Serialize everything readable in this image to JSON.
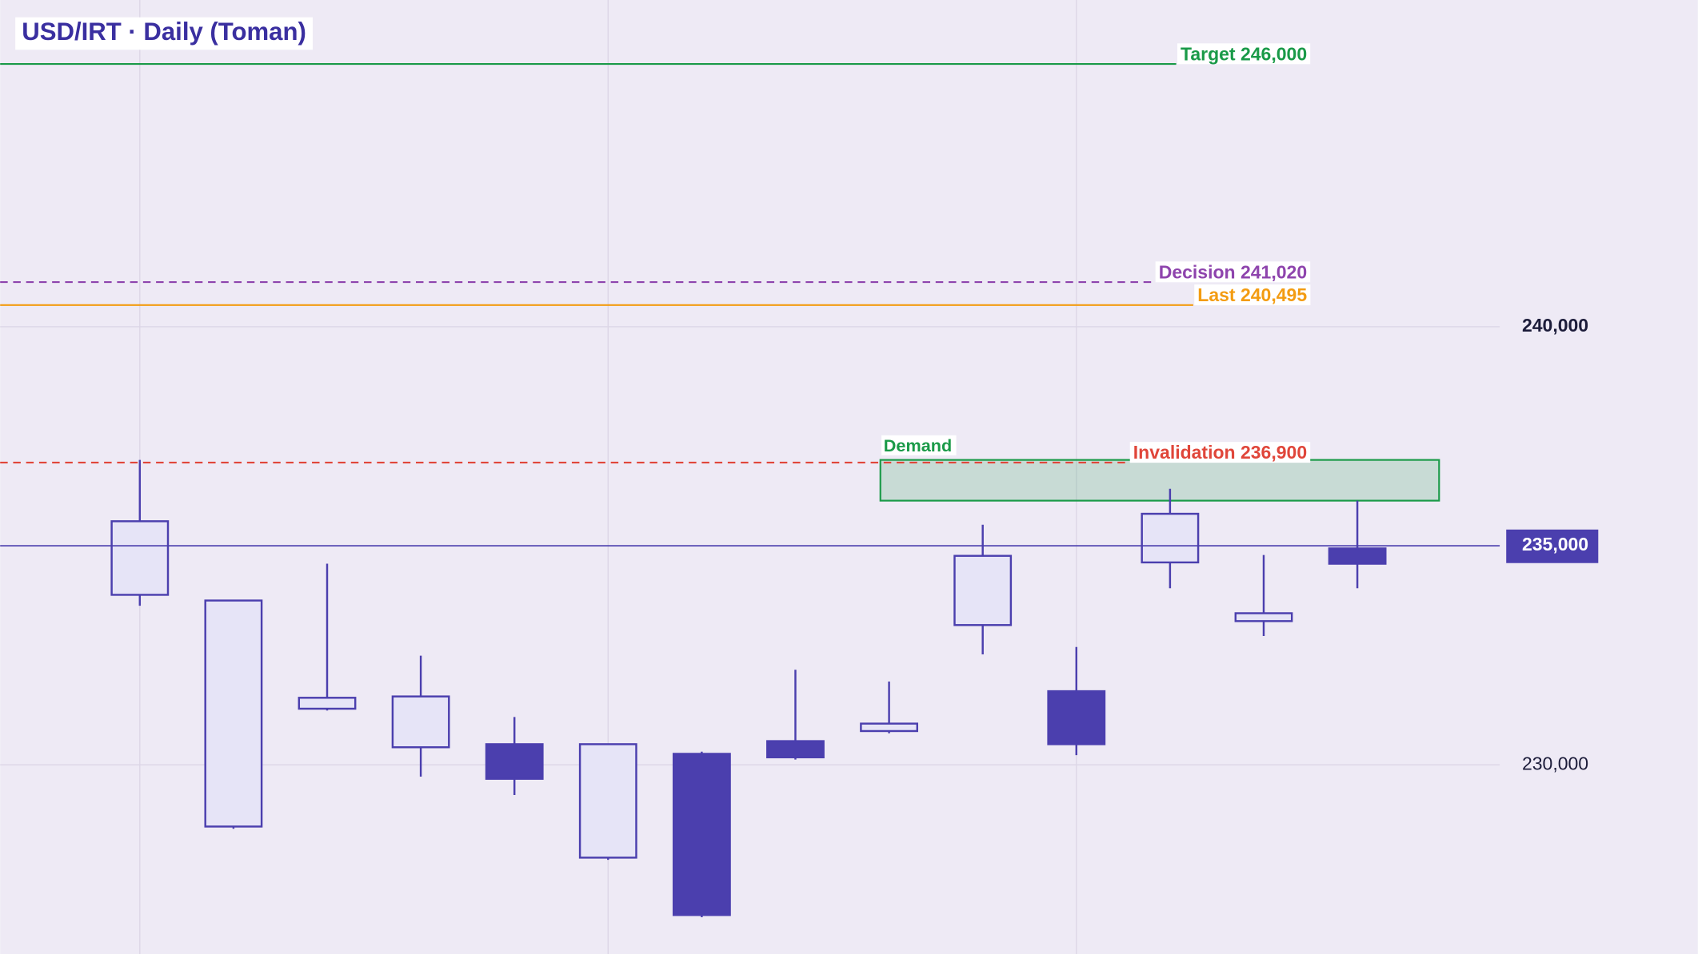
{
  "chart_data": {
    "type": "candlestick",
    "title": "USD/IRT · Daily (Toman)",
    "up_color": "#e6e4f7",
    "down_color": "#4b3fae",
    "line_color": "#4b3fae",
    "ylim": [
      225680,
      247460
    ],
    "yticks": [
      {
        "value": 230000,
        "label": "230,000"
      },
      {
        "value": 240000,
        "label": "240,000"
      }
    ],
    "grid": true,
    "candles": {
      "open": [
        233880,
        228590,
        231280,
        230400,
        230470,
        227880,
        230250,
        230540,
        230770,
        233190,
        231680,
        234620,
        233280,
        234940
      ],
      "high": [
        236960,
        233750,
        234590,
        232490,
        231090,
        230470,
        230300,
        232170,
        231900,
        235480,
        232690,
        236300,
        234790,
        236030
      ],
      "low": [
        233630,
        228540,
        231240,
        229730,
        229310,
        227830,
        226520,
        230120,
        230720,
        232520,
        230220,
        234030,
        232940,
        234030
      ],
      "close": [
        235560,
        233750,
        231530,
        231560,
        229680,
        230470,
        226570,
        230170,
        230940,
        234770,
        230470,
        235730,
        233460,
        234590
      ]
    },
    "price_marker": {
      "value": 235000,
      "label": "235,000"
    },
    "levels": [
      {
        "value": 246000,
        "label": "Target 246,000",
        "color": "#1a9a48",
        "dashed": false
      },
      {
        "value": 241020,
        "label": "Decision 241,020",
        "color": "#8e44ad",
        "dashed": true
      },
      {
        "value": 240495,
        "label": "Last 240,495",
        "color": "#f39c12",
        "dashed": false
      },
      {
        "value": 236900,
        "label": "Invalidation 236,900",
        "color": "#e0463a",
        "dashed": true
      }
    ],
    "zone": {
      "label": "Demand",
      "low": 236030,
      "high": 236960,
      "color": "#1a9a48"
    }
  }
}
